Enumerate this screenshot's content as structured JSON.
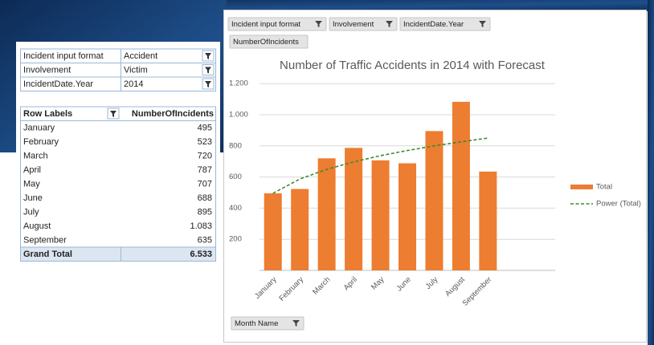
{
  "pivot_filters": [
    {
      "field": "Incident input format",
      "value": "Accident"
    },
    {
      "field": "Involvement",
      "value": "Victim"
    },
    {
      "field": "IncidentDate.Year",
      "value": "2014"
    }
  ],
  "pivot_table": {
    "headers": [
      "Row Labels",
      "NumberOfIncidents"
    ],
    "rows": [
      [
        "January",
        "495"
      ],
      [
        "February",
        "523"
      ],
      [
        "March",
        "720"
      ],
      [
        "April",
        "787"
      ],
      [
        "May",
        "707"
      ],
      [
        "June",
        "688"
      ],
      [
        "July",
        "895"
      ],
      [
        "August",
        "1.083"
      ],
      [
        "September",
        "635"
      ]
    ],
    "total": [
      "Grand Total",
      "6.533"
    ]
  },
  "chart_field_buttons": {
    "filters": [
      "Incident input format",
      "Involvement",
      "IncidentDate.Year"
    ],
    "values": "NumberOfIncidents",
    "axis": "Month Name"
  },
  "chart_data": {
    "type": "bar",
    "title": "Number of Traffic Accidents in 2014 with Forecast",
    "categories": [
      "January",
      "February",
      "March",
      "April",
      "May",
      "June",
      "July",
      "August",
      "September"
    ],
    "series": [
      {
        "name": "Total",
        "color": "#ed7d31",
        "values": [
          495,
          523,
          720,
          787,
          707,
          688,
          895,
          1083,
          635
        ]
      },
      {
        "name": "Power (Total)",
        "type": "trendline",
        "color": "#3d8b2f",
        "dashed": true,
        "values": [
          495,
          587,
          649,
          697,
          737,
          770,
          800,
          826,
          850
        ]
      }
    ],
    "ylim": [
      0,
      1200
    ],
    "yticks": [
      {
        "value": 200,
        "label": "200"
      },
      {
        "value": 400,
        "label": "400"
      },
      {
        "value": 600,
        "label": "600"
      },
      {
        "value": 800,
        "label": "800"
      },
      {
        "value": 1000,
        "label": "1.000"
      },
      {
        "value": 1200,
        "label": "1.200"
      }
    ],
    "grid": true,
    "legend": "right",
    "forecast_forward": 2
  }
}
